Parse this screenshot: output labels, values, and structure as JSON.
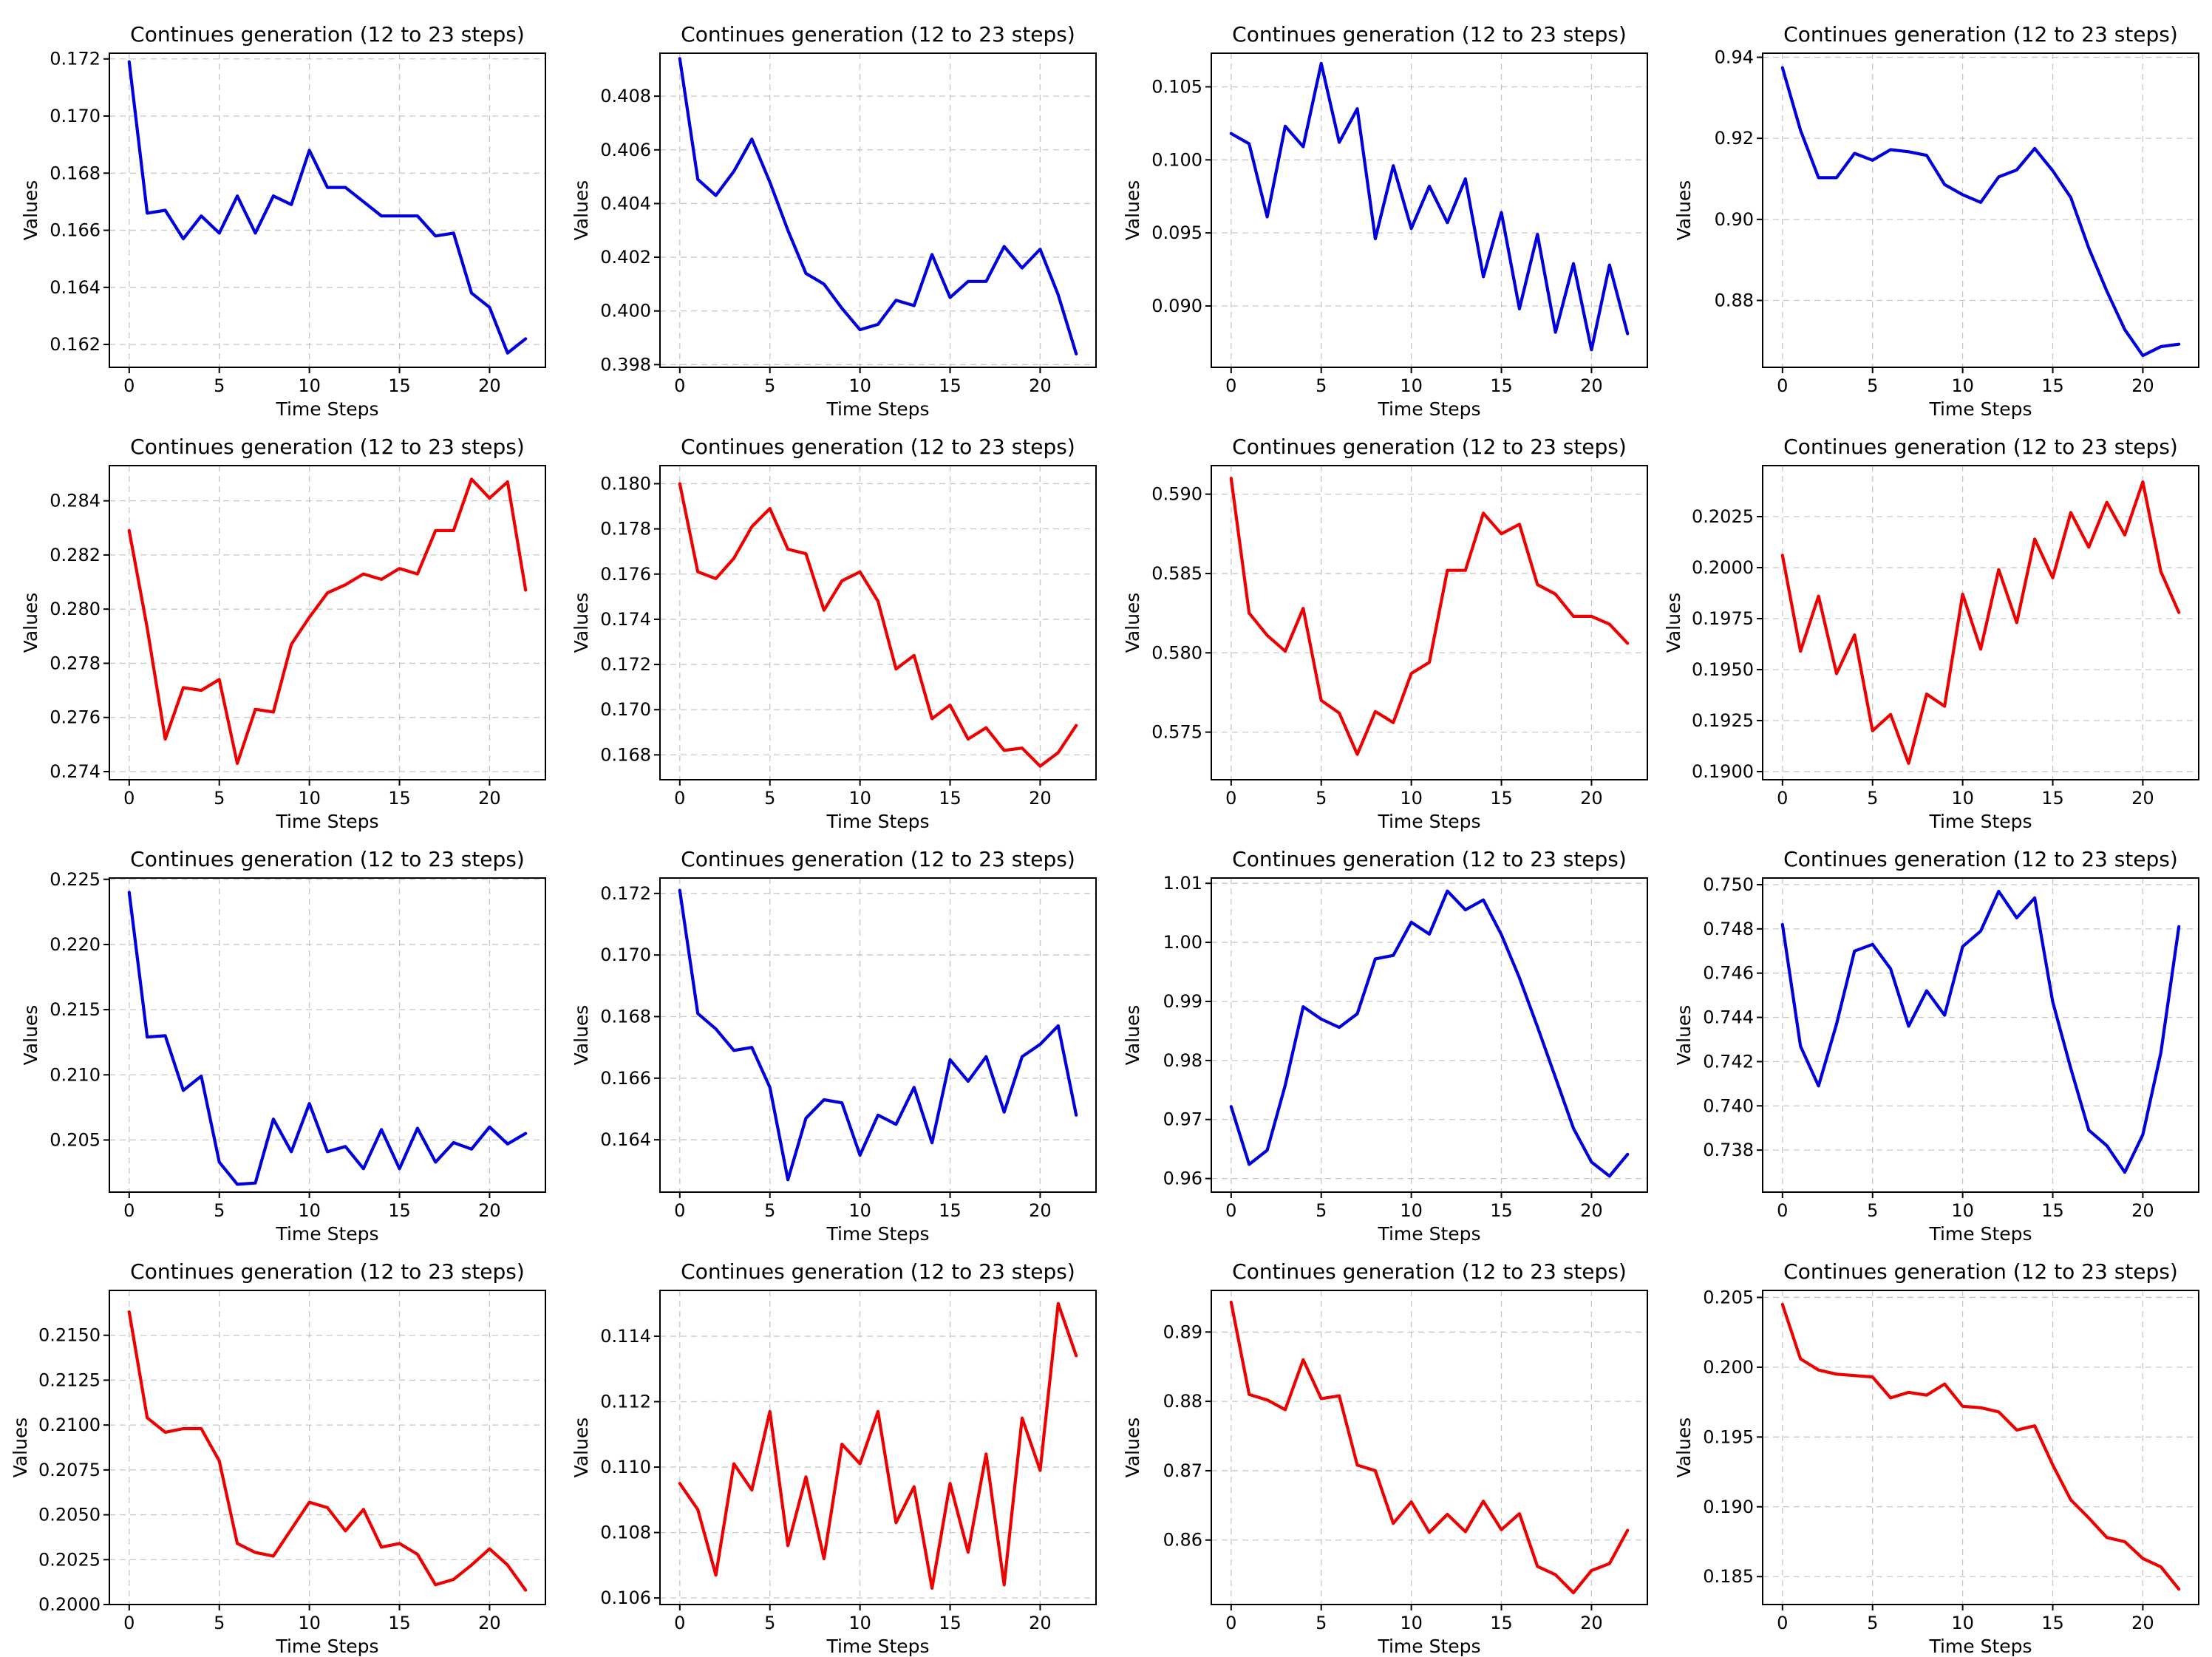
{
  "colors": {
    "blue": "#0000dd",
    "red": "#ee0000"
  },
  "chart_data": [
    {
      "type": "line",
      "title": "Continues generation (12 to 23 steps)",
      "xlabel": "Time Steps",
      "ylabel": "Values",
      "color": "#0000dd",
      "xlim": [
        -1.1,
        23.1
      ],
      "ylim": [
        0.1612,
        0.1722
      ],
      "xticks": [
        0,
        5,
        10,
        15,
        20
      ],
      "xtick_labels": [
        "0",
        "5",
        "10",
        "15",
        "20"
      ],
      "yticks": [
        0.162,
        0.164,
        0.166,
        0.168,
        0.17,
        0.172
      ],
      "ytick_labels": [
        "0.162",
        "0.164",
        "0.166",
        "0.168",
        "0.170",
        "0.172"
      ],
      "grid": true,
      "values": [
        0.1719,
        0.1666,
        0.1667,
        0.1657,
        0.1665,
        0.1659,
        0.1672,
        0.1659,
        0.1672,
        0.1669,
        0.1688,
        0.1675,
        0.1675,
        0.167,
        0.1665,
        0.1665,
        0.1665,
        0.1658,
        0.1659,
        0.1638,
        0.1633,
        0.1617,
        0.1622
      ]
    },
    {
      "type": "line",
      "title": "Continues generation (12 to 23 steps)",
      "xlabel": "Time Steps",
      "ylabel": "Values",
      "color": "#0000dd",
      "xlim": [
        -1.1,
        23.1
      ],
      "ylim": [
        0.3979,
        0.4096
      ],
      "xticks": [
        0,
        5,
        10,
        15,
        20
      ],
      "xtick_labels": [
        "0",
        "5",
        "10",
        "15",
        "20"
      ],
      "yticks": [
        0.398,
        0.4,
        0.402,
        0.404,
        0.406,
        0.408
      ],
      "ytick_labels": [
        "0.398",
        "0.400",
        "0.402",
        "0.404",
        "0.406",
        "0.408"
      ],
      "grid": true,
      "values": [
        0.4094,
        0.4049,
        0.4043,
        0.4052,
        0.4064,
        0.4048,
        0.403,
        0.4014,
        0.401,
        0.4001,
        0.3993,
        0.3995,
        0.4004,
        0.4002,
        0.4021,
        0.4005,
        0.4011,
        0.4011,
        0.4024,
        0.4016,
        0.4023,
        0.4006,
        0.3984
      ]
    },
    {
      "type": "line",
      "title": "Continues generation (12 to 23 steps)",
      "xlabel": "Time Steps",
      "ylabel": "Values",
      "color": "#0000dd",
      "xlim": [
        -1.1,
        23.1
      ],
      "ylim": [
        0.0858,
        0.1073
      ],
      "xticks": [
        0,
        5,
        10,
        15,
        20
      ],
      "xtick_labels": [
        "0",
        "5",
        "10",
        "15",
        "20"
      ],
      "yticks": [
        0.09,
        0.095,
        0.1,
        0.105
      ],
      "ytick_labels": [
        "0.090",
        "0.095",
        "0.100",
        "0.105"
      ],
      "grid": true,
      "values": [
        0.1018,
        0.1011,
        0.0961,
        0.1023,
        0.1009,
        0.1066,
        0.1012,
        0.1035,
        0.0946,
        0.0996,
        0.0953,
        0.0982,
        0.0957,
        0.0987,
        0.092,
        0.0964,
        0.0898,
        0.0949,
        0.0882,
        0.0929,
        0.087,
        0.0928,
        0.0881
      ]
    },
    {
      "type": "line",
      "title": "Continues generation (12 to 23 steps)",
      "xlabel": "Time Steps",
      "ylabel": "Values",
      "color": "#0000dd",
      "xlim": [
        -1.1,
        23.1
      ],
      "ylim": [
        0.8635,
        0.941
      ],
      "xticks": [
        0,
        5,
        10,
        15,
        20
      ],
      "xtick_labels": [
        "0",
        "5",
        "10",
        "15",
        "20"
      ],
      "yticks": [
        0.88,
        0.9,
        0.92,
        0.94
      ],
      "ytick_labels": [
        "0.88",
        "0.90",
        "0.92",
        "0.94"
      ],
      "grid": true,
      "values": [
        0.9374,
        0.922,
        0.9103,
        0.9103,
        0.9163,
        0.9146,
        0.9172,
        0.9167,
        0.9158,
        0.9086,
        0.9061,
        0.9042,
        0.9105,
        0.9122,
        0.9175,
        0.912,
        0.9054,
        0.8929,
        0.8823,
        0.8728,
        0.8664,
        0.8686,
        0.8692
      ]
    },
    {
      "type": "line",
      "title": "Continues generation (12 to 23 steps)",
      "xlabel": "Time Steps",
      "ylabel": "Values",
      "color": "#ee0000",
      "xlim": [
        -1.1,
        23.1
      ],
      "ylim": [
        0.2737,
        0.2853
      ],
      "xticks": [
        0,
        5,
        10,
        15,
        20
      ],
      "xtick_labels": [
        "0",
        "5",
        "10",
        "15",
        "20"
      ],
      "yticks": [
        0.274,
        0.276,
        0.278,
        0.28,
        0.282,
        0.284
      ],
      "ytick_labels": [
        "0.274",
        "0.276",
        "0.278",
        "0.280",
        "0.282",
        "0.284"
      ],
      "grid": true,
      "values": [
        0.2829,
        0.2793,
        0.2752,
        0.2771,
        0.277,
        0.2774,
        0.2743,
        0.2763,
        0.2762,
        0.2787,
        0.2797,
        0.2806,
        0.2809,
        0.2813,
        0.2811,
        0.2815,
        0.2813,
        0.2829,
        0.2829,
        0.2848,
        0.2841,
        0.2847,
        0.2807
      ]
    },
    {
      "type": "line",
      "title": "Continues generation (12 to 23 steps)",
      "xlabel": "Time Steps",
      "ylabel": "Values",
      "color": "#ee0000",
      "xlim": [
        -1.1,
        23.1
      ],
      "ylim": [
        0.1669,
        0.1808
      ],
      "xticks": [
        0,
        5,
        10,
        15,
        20
      ],
      "xtick_labels": [
        "0",
        "5",
        "10",
        "15",
        "20"
      ],
      "yticks": [
        0.168,
        0.17,
        0.172,
        0.174,
        0.176,
        0.178,
        0.18
      ],
      "ytick_labels": [
        "0.168",
        "0.170",
        "0.172",
        "0.174",
        "0.176",
        "0.178",
        "0.180"
      ],
      "grid": true,
      "values": [
        0.18,
        0.1761,
        0.1758,
        0.1767,
        0.1781,
        0.1789,
        0.1771,
        0.1769,
        0.1744,
        0.1757,
        0.1761,
        0.1748,
        0.1718,
        0.1724,
        0.1696,
        0.1702,
        0.1687,
        0.1692,
        0.1682,
        0.1683,
        0.1675,
        0.1681,
        0.1693
      ]
    },
    {
      "type": "line",
      "title": "Continues generation (12 to 23 steps)",
      "xlabel": "Time Steps",
      "ylabel": "Values",
      "color": "#ee0000",
      "xlim": [
        -1.1,
        23.1
      ],
      "ylim": [
        0.572,
        0.5918
      ],
      "xticks": [
        0,
        5,
        10,
        15,
        20
      ],
      "xtick_labels": [
        "0",
        "5",
        "10",
        "15",
        "20"
      ],
      "yticks": [
        0.575,
        0.58,
        0.585,
        0.59
      ],
      "ytick_labels": [
        "0.575",
        "0.580",
        "0.585",
        "0.590"
      ],
      "grid": true,
      "values": [
        0.591,
        0.5825,
        0.5811,
        0.5801,
        0.5828,
        0.577,
        0.5762,
        0.5736,
        0.5763,
        0.5756,
        0.5787,
        0.5794,
        0.5852,
        0.5852,
        0.5888,
        0.5875,
        0.5881,
        0.5843,
        0.5837,
        0.5823,
        0.5823,
        0.5818,
        0.5806
      ]
    },
    {
      "type": "line",
      "title": "Continues generation (12 to 23 steps)",
      "xlabel": "Time Steps",
      "ylabel": "Values",
      "color": "#ee0000",
      "xlim": [
        -1.1,
        23.1
      ],
      "ylim": [
        0.1896,
        0.205
      ],
      "xticks": [
        0,
        5,
        10,
        15,
        20
      ],
      "xtick_labels": [
        "0",
        "5",
        "10",
        "15",
        "20"
      ],
      "yticks": [
        0.19,
        0.1925,
        0.195,
        0.1975,
        0.2,
        0.2025
      ],
      "ytick_labels": [
        "0.1900",
        "0.1925",
        "0.1950",
        "0.1975",
        "0.2000",
        "0.2025"
      ],
      "grid": true,
      "values": [
        0.2006,
        0.1959,
        0.1986,
        0.1948,
        0.1967,
        0.192,
        0.1928,
        0.1904,
        0.1938,
        0.1932,
        0.1987,
        0.196,
        0.1999,
        0.1973,
        0.2014,
        0.1995,
        0.2027,
        0.201,
        0.2032,
        0.2016,
        0.2042,
        0.1998,
        0.1978
      ]
    },
    {
      "type": "line",
      "title": "Continues generation (12 to 23 steps)",
      "xlabel": "Time Steps",
      "ylabel": "Values",
      "color": "#0000dd",
      "xlim": [
        -1.1,
        23.1
      ],
      "ylim": [
        0.201,
        0.2251
      ],
      "xticks": [
        0,
        5,
        10,
        15,
        20
      ],
      "xtick_labels": [
        "0",
        "5",
        "10",
        "15",
        "20"
      ],
      "yticks": [
        0.205,
        0.21,
        0.215,
        0.22,
        0.225
      ],
      "ytick_labels": [
        "0.205",
        "0.210",
        "0.215",
        "0.220",
        "0.225"
      ],
      "grid": true,
      "values": [
        0.224,
        0.2129,
        0.213,
        0.2088,
        0.2099,
        0.2033,
        0.2016,
        0.2017,
        0.2066,
        0.2041,
        0.2078,
        0.2041,
        0.2045,
        0.2028,
        0.2058,
        0.2028,
        0.2059,
        0.2033,
        0.2048,
        0.2043,
        0.206,
        0.2047,
        0.2055
      ]
    },
    {
      "type": "line",
      "title": "Continues generation (12 to 23 steps)",
      "xlabel": "Time Steps",
      "ylabel": "Values",
      "color": "#0000dd",
      "xlim": [
        -1.1,
        23.1
      ],
      "ylim": [
        0.1623,
        0.1725
      ],
      "xticks": [
        0,
        5,
        10,
        15,
        20
      ],
      "xtick_labels": [
        "0",
        "5",
        "10",
        "15",
        "20"
      ],
      "yticks": [
        0.164,
        0.166,
        0.168,
        0.17,
        0.172
      ],
      "ytick_labels": [
        "0.164",
        "0.166",
        "0.168",
        "0.170",
        "0.172"
      ],
      "grid": true,
      "values": [
        0.1721,
        0.1681,
        0.1676,
        0.1669,
        0.167,
        0.1657,
        0.1627,
        0.1647,
        0.1653,
        0.1652,
        0.1635,
        0.1648,
        0.1645,
        0.1657,
        0.1639,
        0.1666,
        0.1659,
        0.1667,
        0.1649,
        0.1667,
        0.1671,
        0.1677,
        0.1648
      ]
    },
    {
      "type": "line",
      "title": "Continues generation (12 to 23 steps)",
      "xlabel": "Time Steps",
      "ylabel": "Values",
      "color": "#0000dd",
      "xlim": [
        -1.1,
        23.1
      ],
      "ylim": [
        0.9577,
        1.0109
      ],
      "xticks": [
        0,
        5,
        10,
        15,
        20
      ],
      "xtick_labels": [
        "0",
        "5",
        "10",
        "15",
        "20"
      ],
      "yticks": [
        0.96,
        0.97,
        0.98,
        0.99,
        1.0,
        1.01
      ],
      "ytick_labels": [
        "0.96",
        "0.97",
        "0.98",
        "0.99",
        "1.00",
        "1.01"
      ],
      "grid": true,
      "values": [
        0.9722,
        0.9624,
        0.9648,
        0.9758,
        0.9891,
        0.987,
        0.9856,
        0.9879,
        0.9972,
        0.9978,
        1.0034,
        1.0014,
        1.0087,
        1.0055,
        1.0072,
        1.0013,
        0.994,
        0.9857,
        0.9771,
        0.9685,
        0.9628,
        0.9604,
        0.9641
      ]
    },
    {
      "type": "line",
      "title": "Continues generation (12 to 23 steps)",
      "xlabel": "Time Steps",
      "ylabel": "Values",
      "color": "#0000dd",
      "xlim": [
        -1.1,
        23.1
      ],
      "ylim": [
        0.7361,
        0.7503
      ],
      "xticks": [
        0,
        5,
        10,
        15,
        20
      ],
      "xtick_labels": [
        "0",
        "5",
        "10",
        "15",
        "20"
      ],
      "yticks": [
        0.738,
        0.74,
        0.742,
        0.744,
        0.746,
        0.748,
        0.75
      ],
      "ytick_labels": [
        "0.738",
        "0.740",
        "0.742",
        "0.744",
        "0.746",
        "0.748",
        "0.750"
      ],
      "grid": true,
      "values": [
        0.7482,
        0.7427,
        0.7409,
        0.7437,
        0.747,
        0.7473,
        0.7462,
        0.7436,
        0.7452,
        0.7441,
        0.7472,
        0.7479,
        0.7497,
        0.7485,
        0.7494,
        0.7447,
        0.7417,
        0.7389,
        0.7382,
        0.737,
        0.7387,
        0.7424,
        0.7481
      ]
    },
    {
      "type": "line",
      "title": "Continues generation (12 to 23 steps)",
      "xlabel": "Time Steps",
      "ylabel": "Values",
      "color": "#ee0000",
      "xlim": [
        -1.1,
        23.1
      ],
      "ylim": [
        0.2,
        0.2175
      ],
      "xticks": [
        0,
        5,
        10,
        15,
        20
      ],
      "xtick_labels": [
        "0",
        "5",
        "10",
        "15",
        "20"
      ],
      "yticks": [
        0.2,
        0.2025,
        0.205,
        0.2075,
        0.21,
        0.2125,
        0.215
      ],
      "ytick_labels": [
        "0.2000",
        "0.2025",
        "0.2050",
        "0.2075",
        "0.2100",
        "0.2125",
        "0.2150"
      ],
      "grid": true,
      "values": [
        0.2163,
        0.2104,
        0.2096,
        0.2098,
        0.2098,
        0.208,
        0.2034,
        0.2029,
        0.2027,
        0.2042,
        0.2057,
        0.2054,
        0.2041,
        0.2053,
        0.2032,
        0.2034,
        0.2028,
        0.2011,
        0.2014,
        0.2022,
        0.2031,
        0.2022,
        0.2008
      ]
    },
    {
      "type": "line",
      "title": "Continues generation (12 to 23 steps)",
      "xlabel": "Time Steps",
      "ylabel": "Values",
      "color": "#ee0000",
      "xlim": [
        -1.1,
        23.1
      ],
      "ylim": [
        0.1058,
        0.1154
      ],
      "xticks": [
        0,
        5,
        10,
        15,
        20
      ],
      "xtick_labels": [
        "0",
        "5",
        "10",
        "15",
        "20"
      ],
      "yticks": [
        0.106,
        0.108,
        0.11,
        0.112,
        0.114
      ],
      "ytick_labels": [
        "0.106",
        "0.108",
        "0.110",
        "0.112",
        "0.114"
      ],
      "grid": true,
      "values": [
        0.1095,
        0.1087,
        0.1067,
        0.1101,
        0.1093,
        0.1117,
        0.1076,
        0.1097,
        0.1072,
        0.1107,
        0.1101,
        0.1117,
        0.1083,
        0.1094,
        0.1063,
        0.1095,
        0.1074,
        0.1104,
        0.1064,
        0.1115,
        0.1099,
        0.115,
        0.1134
      ]
    },
    {
      "type": "line",
      "title": "Continues generation (12 to 23 steps)",
      "xlabel": "Time Steps",
      "ylabel": "Values",
      "color": "#ee0000",
      "xlim": [
        -1.1,
        23.1
      ],
      "ylim": [
        0.8507,
        0.896
      ],
      "xticks": [
        0,
        5,
        10,
        15,
        20
      ],
      "xtick_labels": [
        "0",
        "5",
        "10",
        "15",
        "20"
      ],
      "yticks": [
        0.86,
        0.87,
        0.88,
        0.89
      ],
      "ytick_labels": [
        "0.86",
        "0.87",
        "0.88",
        "0.89"
      ],
      "grid": true,
      "values": [
        0.8943,
        0.881,
        0.8802,
        0.8788,
        0.886,
        0.8804,
        0.8808,
        0.8708,
        0.87,
        0.8624,
        0.8655,
        0.8611,
        0.8637,
        0.8612,
        0.8656,
        0.8615,
        0.8638,
        0.8562,
        0.855,
        0.8524,
        0.8556,
        0.8566,
        0.8614
      ]
    },
    {
      "type": "line",
      "title": "Continues generation (12 to 23 steps)",
      "xlabel": "Time Steps",
      "ylabel": "Values",
      "color": "#ee0000",
      "xlim": [
        -1.1,
        23.1
      ],
      "ylim": [
        0.183,
        0.2055
      ],
      "xticks": [
        0,
        5,
        10,
        15,
        20
      ],
      "xtick_labels": [
        "0",
        "5",
        "10",
        "15",
        "20"
      ],
      "yticks": [
        0.185,
        0.19,
        0.195,
        0.2,
        0.205
      ],
      "ytick_labels": [
        "0.185",
        "0.190",
        "0.195",
        "0.200",
        "0.205"
      ],
      "grid": true,
      "values": [
        0.2045,
        0.2006,
        0.1998,
        0.1995,
        0.1994,
        0.1993,
        0.1978,
        0.1982,
        0.198,
        0.1988,
        0.1972,
        0.1971,
        0.1968,
        0.1955,
        0.1958,
        0.193,
        0.1905,
        0.1892,
        0.1878,
        0.1875,
        0.1863,
        0.1857,
        0.1841
      ]
    }
  ]
}
